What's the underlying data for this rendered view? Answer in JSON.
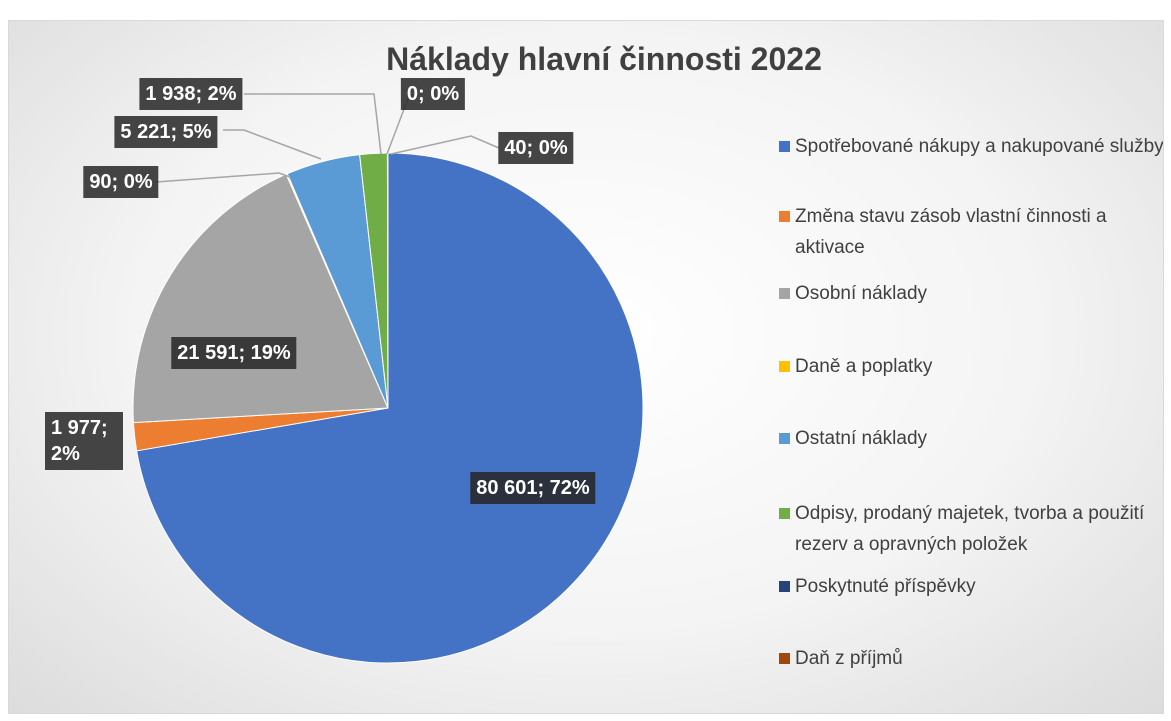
{
  "chart_data": {
    "type": "pie",
    "title": "Náklady hlavní činnosti 2022",
    "categories": [
      "Spotřebované nákupy a nakupované služby",
      "Změna stavu zásob vlastní činnosti a aktivace",
      "Osobní náklady",
      "Daně a poplatky",
      "Ostatní náklady",
      "Odpisy, prodaný majetek, tvorba a použití rezerv a opravných položek",
      "Poskytnuté příspěvky",
      "Daň z příjmů"
    ],
    "values": [
      80601,
      1977,
      21591,
      90,
      5221,
      1938,
      0,
      40
    ],
    "value_labels": [
      "80 601; 72%",
      "1 977; 2%",
      "21 591; 19%",
      "90; 0%",
      "5 221; 5%",
      "1 938; 2%",
      "0; 0%",
      "40; 0%"
    ],
    "colors": [
      "#4472c4",
      "#ed7d31",
      "#a5a5a5",
      "#ffc000",
      "#5b9bd5",
      "#70ad47",
      "#264478",
      "#9e480e"
    ],
    "legend": "right"
  }
}
